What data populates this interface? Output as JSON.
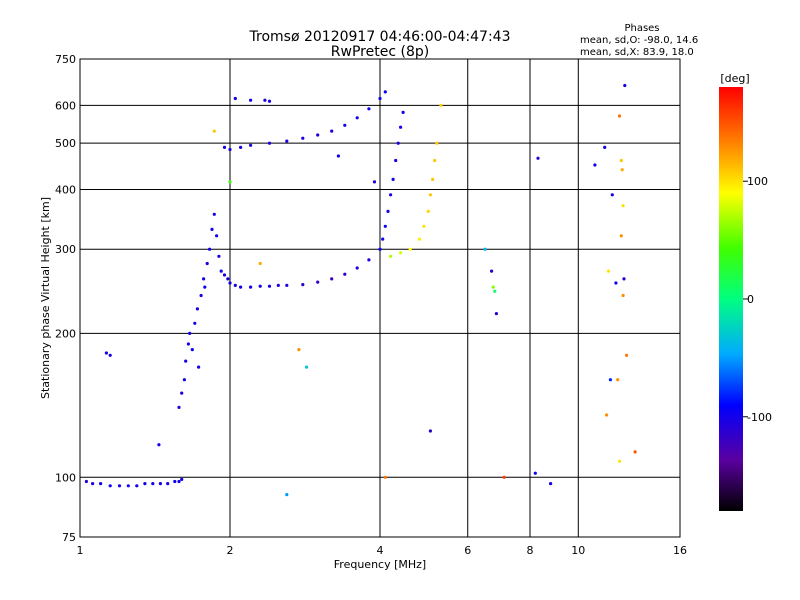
{
  "chart_data": {
    "type": "scatter",
    "title": "Tromsø 20120917 04:46:00-04:47:43",
    "subtitle": "RwPretec (8p)",
    "xlabel": "Frequency [MHz]",
    "ylabel": "Stationary phase Virtual Height [km]",
    "x_scale": "log",
    "y_scale": "log",
    "xlim": [
      1,
      16
    ],
    "ylim": [
      75,
      750
    ],
    "xticks": [
      1,
      2,
      4,
      6,
      8,
      10,
      16
    ],
    "xticklabels": [
      "1",
      "2",
      "4",
      "6",
      "8",
      "10",
      "16"
    ],
    "yticks": [
      75,
      100,
      200,
      300,
      400,
      500,
      600,
      750
    ],
    "yticklabels": [
      "75",
      "100",
      "200",
      "300",
      "400",
      "500",
      "600",
      "750"
    ],
    "grid": true,
    "annotation": {
      "title": "Phases",
      "line1": "mean, sd,O: -98.0, 14.6",
      "line2": "mean, sd,X:  83.9, 18.0"
    },
    "colorbar": {
      "label": "[deg]",
      "range": [
        -180,
        180
      ],
      "ticks": [
        100,
        0,
        -100
      ],
      "ticklabels": [
        "100",
        "0",
        "-100"
      ]
    },
    "series": [
      {
        "points": [
          [
            1.03,
            98,
            -110
          ],
          [
            1.06,
            97,
            -105
          ],
          [
            1.1,
            97,
            -100
          ],
          [
            1.15,
            96,
            -98
          ],
          [
            1.2,
            96,
            -100
          ],
          [
            1.25,
            96,
            -102
          ],
          [
            1.3,
            96,
            -100
          ],
          [
            1.35,
            97,
            -98
          ],
          [
            1.4,
            97,
            -100
          ],
          [
            1.45,
            97,
            -102
          ],
          [
            1.5,
            97,
            -100
          ],
          [
            1.55,
            98,
            -98
          ],
          [
            1.58,
            98,
            -100
          ],
          [
            1.6,
            99,
            -100
          ],
          [
            1.13,
            182,
            -100
          ],
          [
            1.15,
            180,
            -100
          ],
          [
            1.44,
            117,
            -100
          ],
          [
            1.58,
            140,
            -110
          ],
          [
            1.6,
            150,
            -105
          ],
          [
            1.62,
            160,
            -100
          ],
          [
            1.63,
            175,
            -100
          ],
          [
            1.65,
            190,
            -105
          ],
          [
            1.66,
            200,
            -100
          ],
          [
            1.68,
            185,
            -95
          ],
          [
            1.7,
            210,
            -100
          ],
          [
            1.72,
            225,
            -100
          ],
          [
            1.73,
            170,
            -100
          ],
          [
            1.75,
            240,
            -100
          ],
          [
            1.77,
            260,
            -100
          ],
          [
            1.78,
            250,
            -100
          ],
          [
            1.8,
            280,
            -105
          ],
          [
            1.82,
            300,
            -100
          ],
          [
            1.84,
            330,
            -100
          ],
          [
            1.86,
            355,
            -100
          ],
          [
            1.88,
            320,
            -100
          ],
          [
            1.9,
            290,
            -100
          ],
          [
            1.92,
            270,
            -100
          ],
          [
            1.95,
            265,
            -100
          ],
          [
            1.98,
            260,
            -100
          ],
          [
            2.0,
            255,
            -100
          ],
          [
            2.05,
            252,
            -100
          ],
          [
            2.1,
            250,
            -100
          ],
          [
            2.2,
            250,
            -100
          ],
          [
            2.3,
            251,
            -102
          ],
          [
            2.4,
            251,
            -104
          ],
          [
            2.5,
            252,
            -106
          ],
          [
            2.6,
            252,
            -108
          ],
          [
            2.8,
            253,
            -112
          ],
          [
            3.0,
            256,
            -115
          ],
          [
            3.2,
            260,
            -118
          ],
          [
            3.4,
            266,
            -115
          ],
          [
            3.6,
            274,
            -110
          ],
          [
            3.8,
            285,
            -105
          ],
          [
            4.0,
            300,
            -98
          ],
          [
            4.05,
            315,
            -98
          ],
          [
            4.1,
            335,
            -98
          ],
          [
            4.15,
            360,
            -100
          ],
          [
            4.2,
            390,
            -100
          ],
          [
            4.25,
            420,
            -100
          ],
          [
            4.3,
            460,
            -100
          ],
          [
            4.35,
            500,
            -102
          ],
          [
            4.4,
            540,
            -100
          ],
          [
            4.45,
            580,
            -100
          ],
          [
            4.2,
            290,
            70
          ],
          [
            4.4,
            295,
            80
          ],
          [
            4.6,
            300,
            90
          ],
          [
            4.8,
            315,
            95
          ],
          [
            4.9,
            335,
            100
          ],
          [
            5.0,
            360,
            105
          ],
          [
            5.05,
            390,
            110
          ],
          [
            5.1,
            420,
            110
          ],
          [
            5.15,
            460,
            110
          ],
          [
            5.2,
            500,
            110
          ],
          [
            5.3,
            600,
            105
          ],
          [
            1.95,
            490,
            -100
          ],
          [
            2.0,
            485,
            -100
          ],
          [
            2.1,
            490,
            -100
          ],
          [
            2.2,
            495,
            -100
          ],
          [
            2.4,
            500,
            -102
          ],
          [
            2.6,
            505,
            -104
          ],
          [
            2.8,
            512,
            -106
          ],
          [
            3.0,
            520,
            -105
          ],
          [
            3.2,
            530,
            -103
          ],
          [
            3.4,
            545,
            -100
          ],
          [
            3.6,
            565,
            -98
          ],
          [
            3.8,
            590,
            -95
          ],
          [
            4.0,
            620,
            -98
          ],
          [
            4.1,
            640,
            -98
          ],
          [
            2.05,
            620,
            -100
          ],
          [
            2.2,
            615,
            -100
          ],
          [
            2.35,
            615,
            -105
          ],
          [
            2.4,
            612,
            -100
          ],
          [
            1.86,
            530,
            110
          ],
          [
            2.0,
            415,
            40
          ],
          [
            2.3,
            280,
            120
          ],
          [
            2.6,
            92,
            -50
          ],
          [
            2.75,
            185,
            130
          ],
          [
            2.85,
            170,
            -30
          ],
          [
            3.3,
            470,
            -100
          ],
          [
            3.9,
            415,
            -110
          ],
          [
            4.1,
            100,
            140
          ],
          [
            5.05,
            125,
            -110
          ],
          [
            6.5,
            300,
            -40
          ],
          [
            6.7,
            270,
            -110
          ],
          [
            6.75,
            250,
            60
          ],
          [
            6.8,
            245,
            10
          ],
          [
            6.85,
            220,
            -110
          ],
          [
            7.1,
            100,
            160
          ],
          [
            8.2,
            102,
            -100
          ],
          [
            8.3,
            465,
            -110
          ],
          [
            8.8,
            97,
            -100
          ],
          [
            10.8,
            450,
            -100
          ],
          [
            11.3,
            490,
            -100
          ],
          [
            11.5,
            270,
            100
          ],
          [
            11.6,
            160,
            -80
          ],
          [
            11.4,
            135,
            130
          ],
          [
            11.7,
            390,
            -100
          ],
          [
            11.9,
            255,
            -100
          ],
          [
            12.0,
            160,
            130
          ],
          [
            12.1,
            570,
            140
          ],
          [
            12.2,
            460,
            110
          ],
          [
            12.25,
            440,
            120
          ],
          [
            12.3,
            370,
            100
          ],
          [
            12.2,
            320,
            130
          ],
          [
            12.3,
            240,
            130
          ],
          [
            12.35,
            260,
            -110
          ],
          [
            12.4,
            660,
            -100
          ],
          [
            12.5,
            180,
            140
          ],
          [
            12.1,
            108,
            100
          ],
          [
            13.0,
            113,
            150
          ]
        ]
      }
    ]
  }
}
